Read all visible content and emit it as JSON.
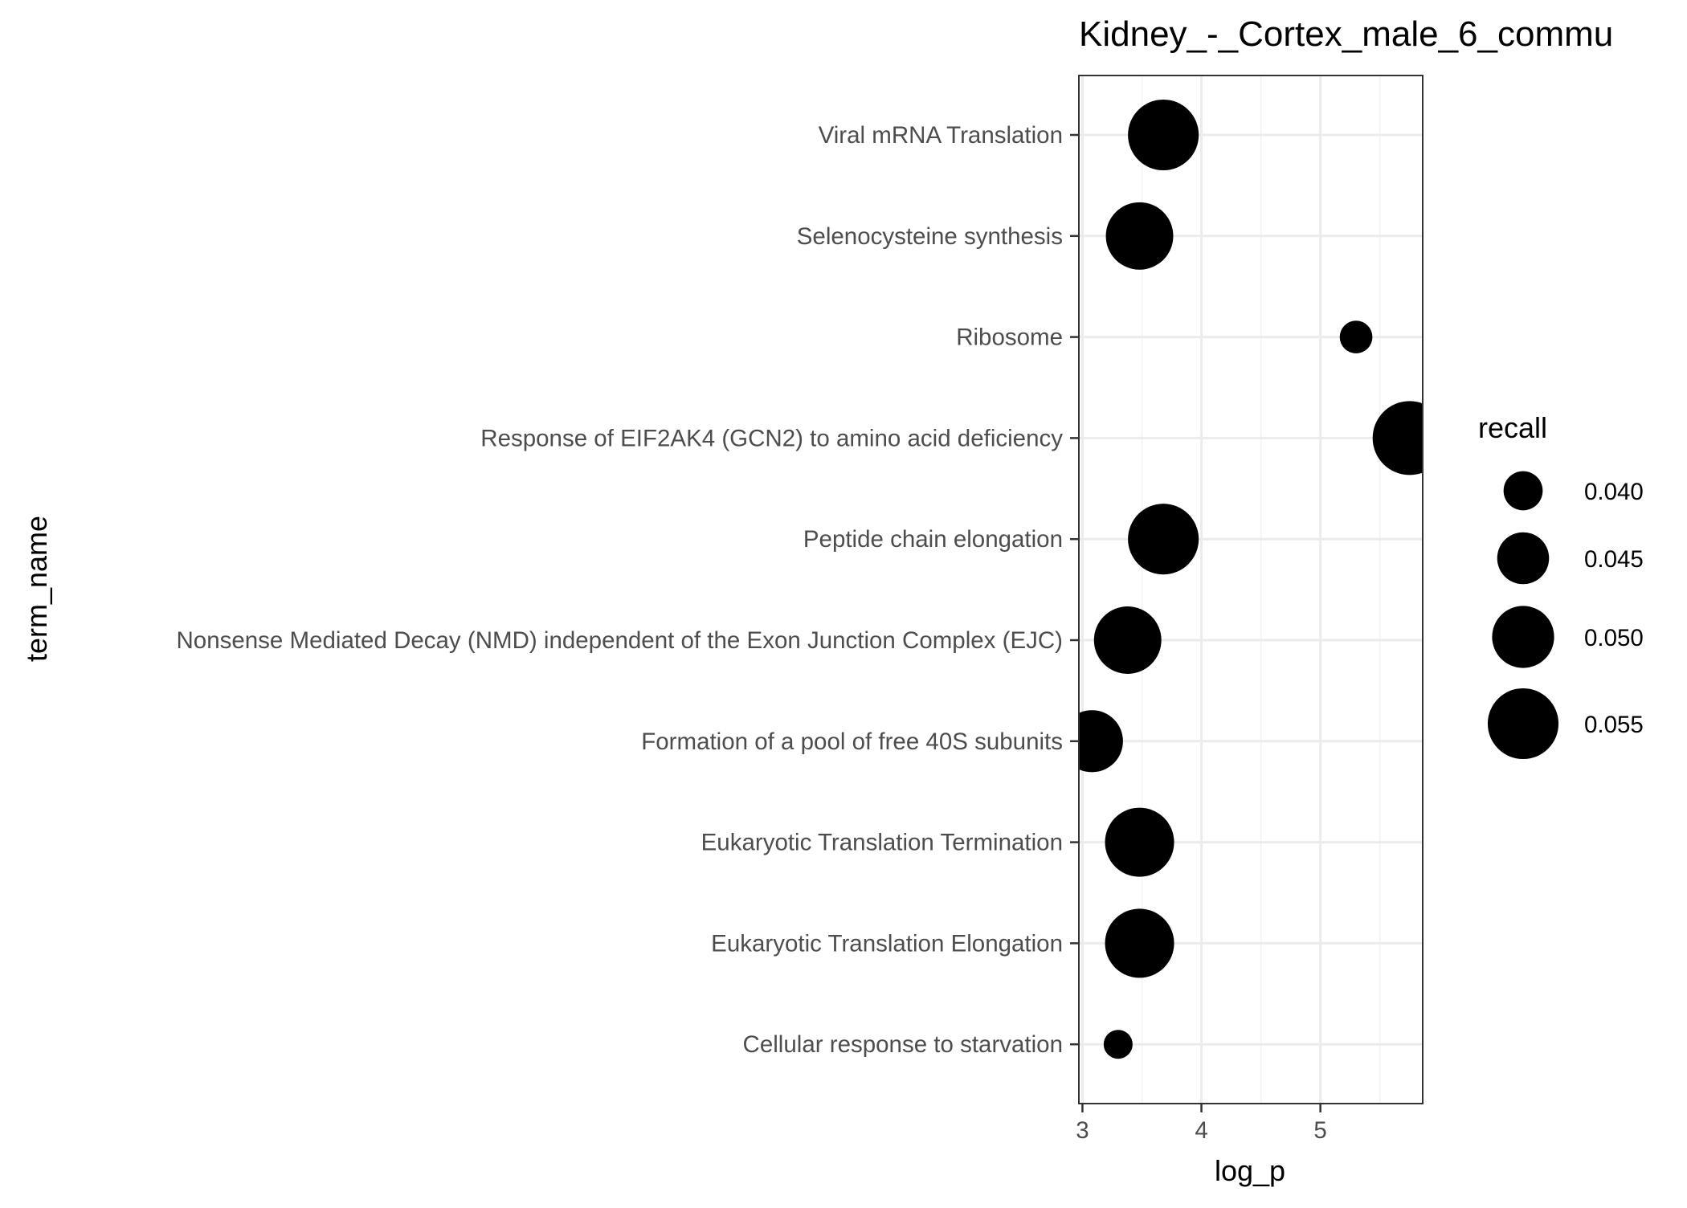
{
  "chart_data": {
    "type": "scatter",
    "title": "Kidney_-_Cortex_male_6_commu",
    "xlabel": "log_p",
    "ylabel": "term_name",
    "xlim": [
      2.97,
      5.86
    ],
    "x_ticks": [
      3,
      4,
      5
    ],
    "grid": true,
    "legend": {
      "title": "recall",
      "position": "right",
      "items": [
        {
          "label": "0.040",
          "value": 0.04
        },
        {
          "label": "0.045",
          "value": 0.045
        },
        {
          "label": "0.050",
          "value": 0.05
        },
        {
          "label": "0.055",
          "value": 0.055
        }
      ]
    },
    "size_range": [
      0.037,
      0.058
    ],
    "point_color": "#000000",
    "points": [
      {
        "term_name": "Viral mRNA Translation",
        "log_p": 3.68,
        "recall": 0.055
      },
      {
        "term_name": "Selenocysteine synthesis",
        "log_p": 3.48,
        "recall": 0.053
      },
      {
        "term_name": "Ribosome",
        "log_p": 5.3,
        "recall": 0.038
      },
      {
        "term_name": "Response of EIF2AK4 (GCN2) to amino acid deficiency",
        "log_p": 5.75,
        "recall": 0.057
      },
      {
        "term_name": "Peptide chain elongation",
        "log_p": 3.68,
        "recall": 0.055
      },
      {
        "term_name": "Nonsense Mediated Decay (NMD) independent of the Exon Junction Complex (EJC)",
        "log_p": 3.38,
        "recall": 0.053
      },
      {
        "term_name": "Formation of a pool of free 40S subunits",
        "log_p": 3.08,
        "recall": 0.05
      },
      {
        "term_name": "Eukaryotic Translation Termination",
        "log_p": 3.48,
        "recall": 0.054
      },
      {
        "term_name": "Eukaryotic Translation Elongation",
        "log_p": 3.48,
        "recall": 0.054
      },
      {
        "term_name": "Cellular response to starvation",
        "log_p": 3.3,
        "recall": 0.037
      }
    ]
  }
}
